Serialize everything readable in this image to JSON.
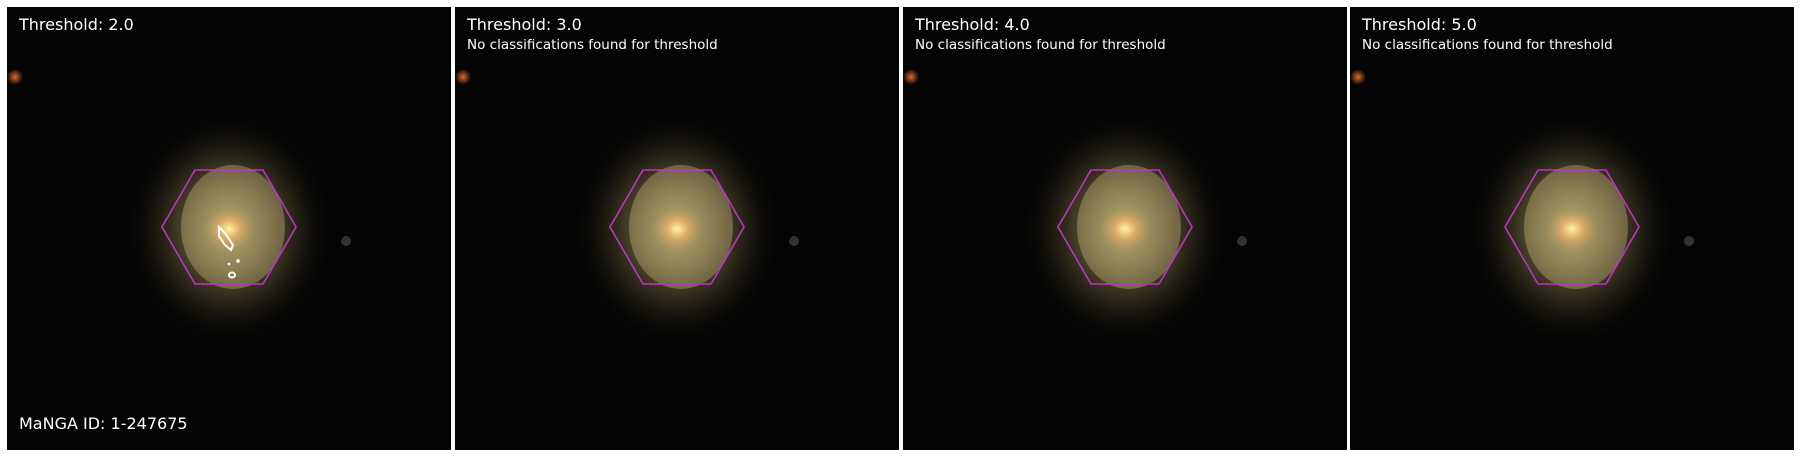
{
  "panels": [
    {
      "title": "Threshold: 2.0",
      "note": ""
    },
    {
      "title": "Threshold: 3.0",
      "note": "No classifications found for threshold"
    },
    {
      "title": "Threshold: 4.0",
      "note": "No classifications found for threshold"
    },
    {
      "title": "Threshold: 5.0",
      "note": "No classifications found for threshold"
    }
  ],
  "manga_id": "MaNGA ID: 1-247675",
  "colors": {
    "background": "#040404",
    "hexagon": "#c231c8",
    "contour": "#ffffff",
    "text": "#ffffff"
  }
}
